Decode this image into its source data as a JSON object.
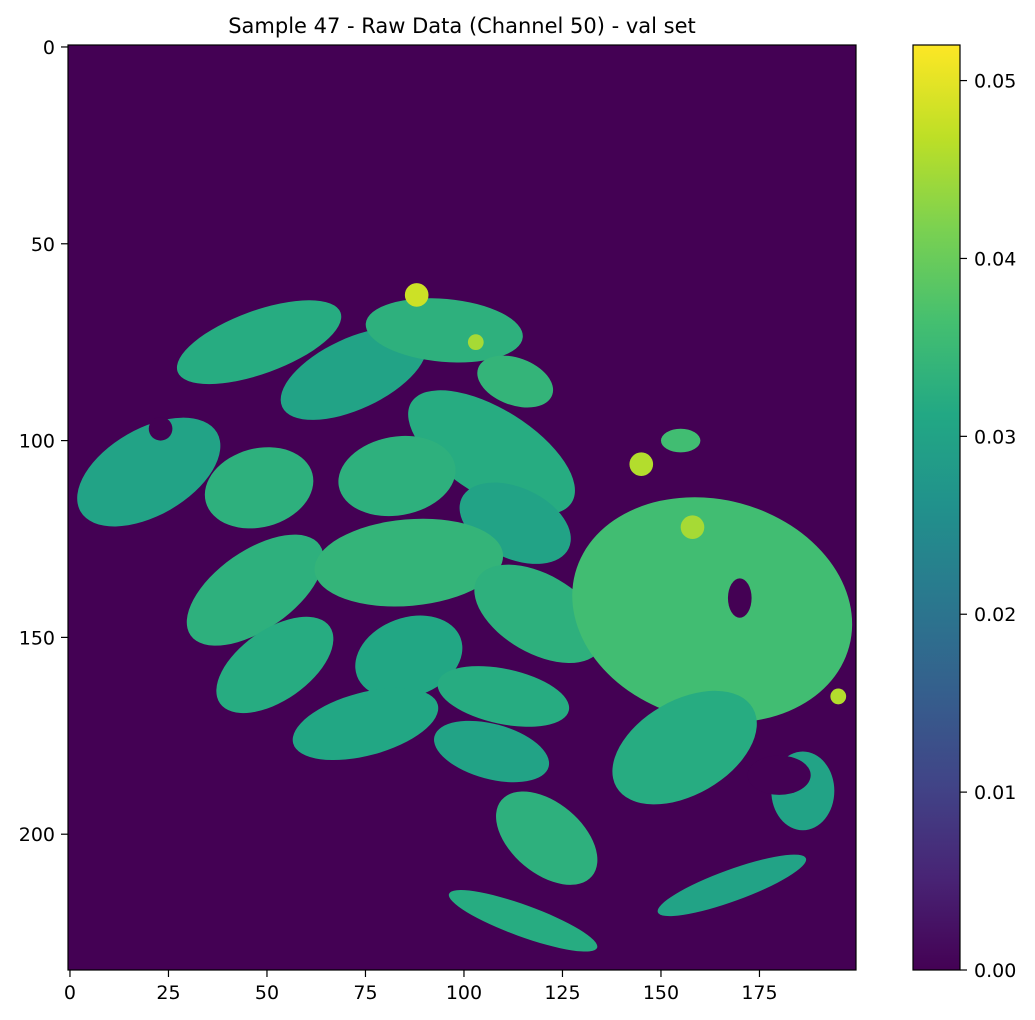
{
  "chart_data": {
    "type": "heatmap",
    "title": "Sample 47 - Raw Data (Channel 50) - val set",
    "xlabel": "",
    "ylabel": "",
    "colormap": "viridis",
    "x_range": [
      0,
      199
    ],
    "y_range": [
      0,
      234
    ],
    "y_inverted": true,
    "x_ticks": [
      "0",
      "25",
      "50",
      "75",
      "100",
      "125",
      "150",
      "175"
    ],
    "x_tick_values": [
      0,
      25,
      50,
      75,
      100,
      125,
      150,
      175
    ],
    "y_ticks": [
      "0",
      "50",
      "100",
      "150",
      "200"
    ],
    "y_tick_values": [
      0,
      50,
      100,
      150,
      200
    ],
    "colorbar": {
      "min": 0.0,
      "max": 0.052,
      "ticks": [
        "0.00",
        "0.01",
        "0.02",
        "0.03",
        "0.04",
        "0.05"
      ],
      "tick_values": [
        0.0,
        0.01,
        0.02,
        0.03,
        0.04,
        0.05
      ]
    },
    "background_value": 0.0,
    "regions": [
      {
        "name": "left-edge-blob",
        "cx": 20,
        "cy": 108,
        "rx": 20,
        "ry": 11,
        "angle": -30,
        "value": 0.03
      },
      {
        "name": "top-left-arc",
        "cx": 48,
        "cy": 75,
        "rx": 22,
        "ry": 8,
        "angle": -20,
        "value": 0.032
      },
      {
        "name": "upper-grain-1",
        "cx": 72,
        "cy": 83,
        "rx": 20,
        "ry": 9,
        "angle": -25,
        "value": 0.03
      },
      {
        "name": "upper-grain-2",
        "cx": 95,
        "cy": 72,
        "rx": 20,
        "ry": 8,
        "angle": 5,
        "value": 0.033
      },
      {
        "name": "upper-right-fragment",
        "cx": 113,
        "cy": 85,
        "rx": 10,
        "ry": 6,
        "angle": 20,
        "value": 0.034
      },
      {
        "name": "diagonal-grain",
        "cx": 107,
        "cy": 103,
        "rx": 24,
        "ry": 11,
        "angle": 32,
        "value": 0.032
      },
      {
        "name": "grain-left-mid",
        "cx": 48,
        "cy": 112,
        "rx": 14,
        "ry": 10,
        "angle": -15,
        "value": 0.033
      },
      {
        "name": "grain-center-top",
        "cx": 83,
        "cy": 109,
        "rx": 15,
        "ry": 10,
        "angle": -10,
        "value": 0.033
      },
      {
        "name": "grain-center-right",
        "cx": 113,
        "cy": 121,
        "rx": 15,
        "ry": 9,
        "angle": 25,
        "value": 0.03
      },
      {
        "name": "grain-left-lower",
        "cx": 47,
        "cy": 138,
        "rx": 20,
        "ry": 10,
        "angle": -35,
        "value": 0.033
      },
      {
        "name": "grain-center",
        "cx": 86,
        "cy": 131,
        "rx": 24,
        "ry": 11,
        "angle": -5,
        "value": 0.034
      },
      {
        "name": "grain-right",
        "cx": 119,
        "cy": 144,
        "rx": 18,
        "ry": 10,
        "angle": 30,
        "value": 0.033
      },
      {
        "name": "grain-lower-left",
        "cx": 52,
        "cy": 157,
        "rx": 17,
        "ry": 9,
        "angle": -35,
        "value": 0.032
      },
      {
        "name": "grain-lower-center",
        "cx": 86,
        "cy": 155,
        "rx": 14,
        "ry": 10,
        "angle": -20,
        "value": 0.031
      },
      {
        "name": "grain-lower-right",
        "cx": 110,
        "cy": 165,
        "rx": 17,
        "ry": 7,
        "angle": 12,
        "value": 0.032
      },
      {
        "name": "grain-bottom-left",
        "cx": 75,
        "cy": 172,
        "rx": 19,
        "ry": 8,
        "angle": -15,
        "value": 0.031
      },
      {
        "name": "grain-bottom-center",
        "cx": 107,
        "cy": 179,
        "rx": 15,
        "ry": 7,
        "angle": 15,
        "value": 0.03
      },
      {
        "name": "grain-bottom-tip",
        "cx": 121,
        "cy": 201,
        "rx": 15,
        "ry": 9,
        "angle": 40,
        "value": 0.033
      },
      {
        "name": "right-mass",
        "cx": 163,
        "cy": 143,
        "rx": 36,
        "ry": 28,
        "angle": 15,
        "value": 0.036
      },
      {
        "name": "right-lower-lobe",
        "cx": 156,
        "cy": 178,
        "rx": 20,
        "ry": 12,
        "angle": -30,
        "value": 0.032
      },
      {
        "name": "right-bottom-spot",
        "cx": 186,
        "cy": 189,
        "rx": 8,
        "ry": 10,
        "angle": 0,
        "value": 0.03
      },
      {
        "name": "bottom-strip",
        "cx": 115,
        "cy": 222,
        "rx": 20,
        "ry": 4,
        "angle": 20,
        "value": 0.032
      },
      {
        "name": "bottom-right-strip",
        "cx": 168,
        "cy": 213,
        "rx": 20,
        "ry": 4,
        "angle": -20,
        "value": 0.03
      },
      {
        "name": "small-upper-right-blob",
        "cx": 155,
        "cy": 100,
        "rx": 5,
        "ry": 3,
        "angle": 0,
        "value": 0.036
      }
    ],
    "holes": [
      {
        "name": "left-hole",
        "cx": 23,
        "cy": 97,
        "rx": 3,
        "ry": 3,
        "angle": 0
      },
      {
        "name": "right-notch",
        "cx": 170,
        "cy": 140,
        "rx": 3,
        "ry": 5,
        "angle": 0
      },
      {
        "name": "right-cavity",
        "cx": 180,
        "cy": 185,
        "rx": 8,
        "ry": 5,
        "angle": 0
      }
    ],
    "highlights": [
      {
        "cx": 88,
        "cy": 63,
        "r": 3,
        "value": 0.048
      },
      {
        "cx": 145,
        "cy": 106,
        "r": 3,
        "value": 0.046
      },
      {
        "cx": 158,
        "cy": 122,
        "r": 3,
        "value": 0.045
      },
      {
        "cx": 103,
        "cy": 75,
        "r": 2,
        "value": 0.045
      },
      {
        "cx": 195,
        "cy": 165,
        "r": 2,
        "value": 0.046
      }
    ]
  }
}
